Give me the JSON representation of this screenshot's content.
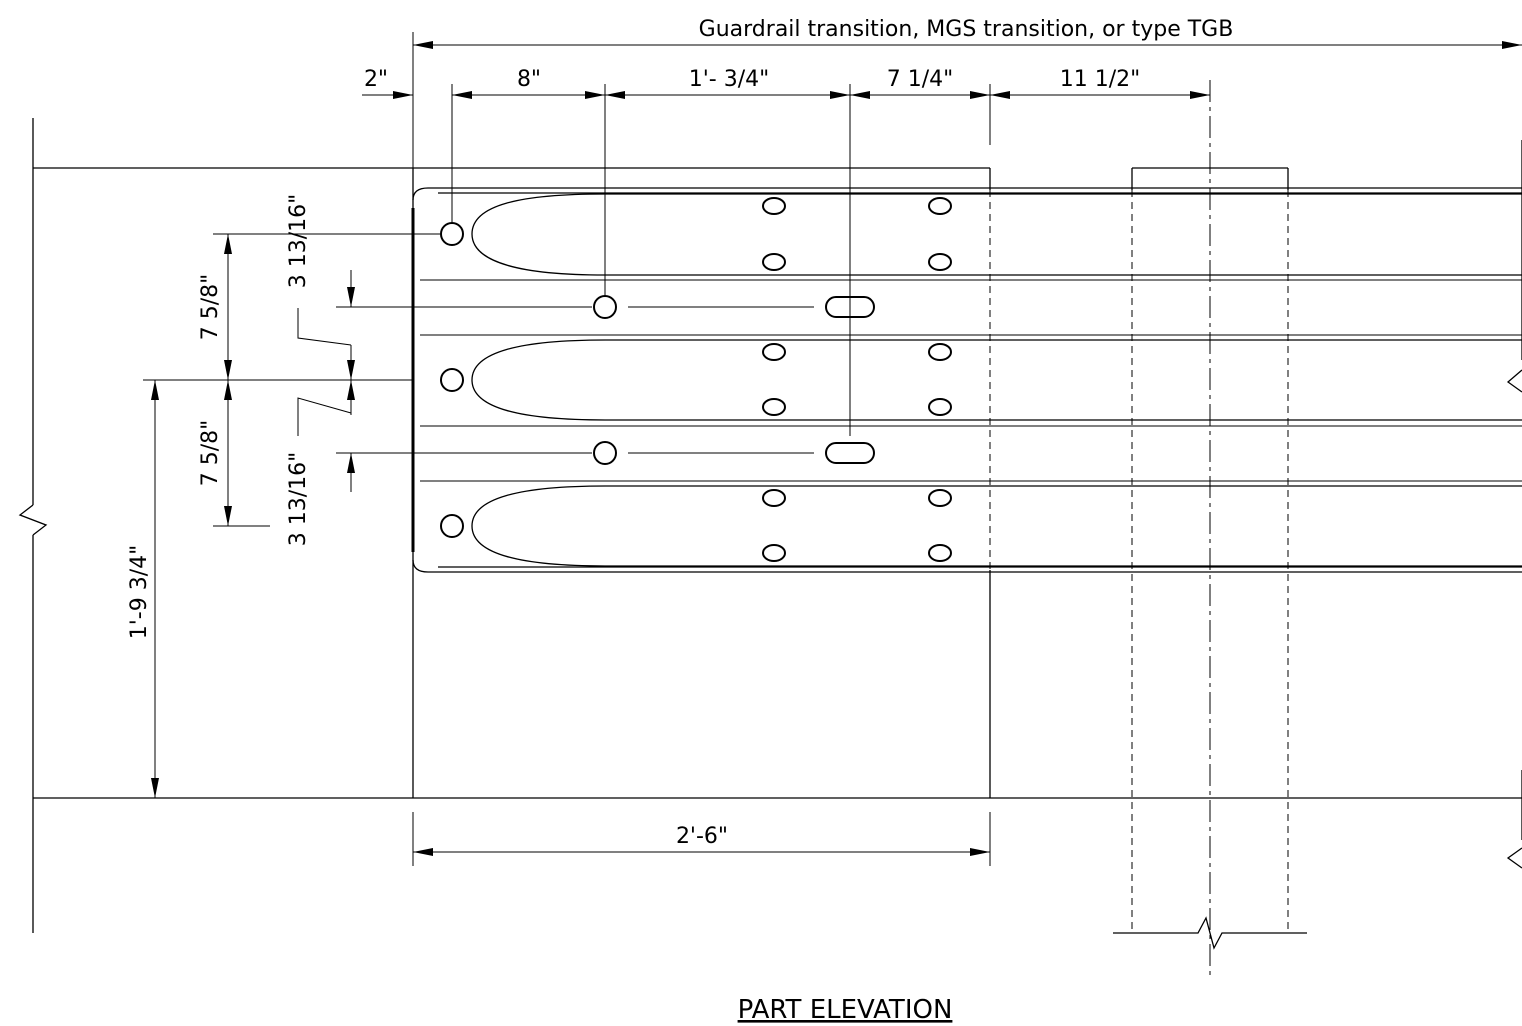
{
  "title": "PART ELEVATION",
  "top_label": "Guardrail transition, MGS transition, or type TGB",
  "dimensions": {
    "offset_2in": "2\"",
    "d_8in": "8\"",
    "d_1ft_3_4": "1'- 3/4\"",
    "d_7_1_4": "7 1/4\"",
    "d_11_1_2": "11 1/2\"",
    "d_2ft_6": "2'-6\"",
    "d_7_5_8_upper": "7 5/8\"",
    "d_7_5_8_lower": "7 5/8\"",
    "d_3_13_16_upper": "3 13/16\"",
    "d_3_13_16_lower": "3 13/16\"",
    "d_1ft_9_3_4": "1'-9 3/4\""
  }
}
